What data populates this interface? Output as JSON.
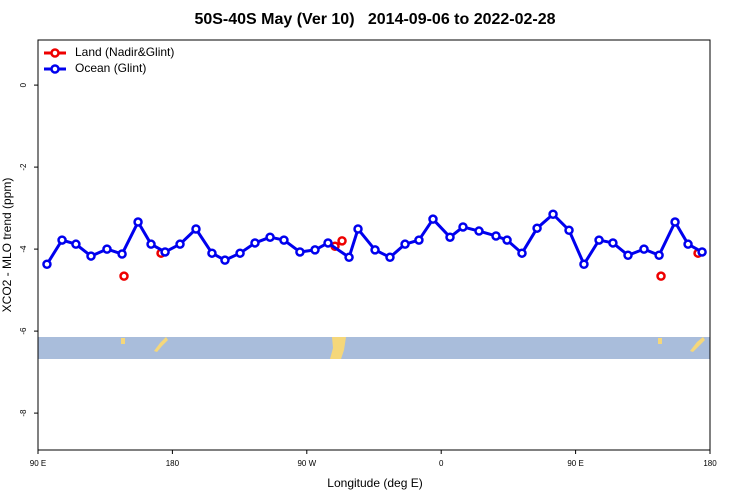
{
  "chart_data": {
    "type": "line",
    "title": "50S-40S May (Ver 10)   2014-09-06 to 2022-02-28",
    "x_label": "Longitude (deg E)",
    "y_label": "XCO2 - MLO trend (ppm)",
    "xlim": [
      90,
      540
    ],
    "xticks": [
      {
        "value": 90,
        "label": "90 E"
      },
      {
        "value": 180,
        "label": "180"
      },
      {
        "value": 270,
        "label": "90 W"
      },
      {
        "value": 360,
        "label": "0"
      },
      {
        "value": 450,
        "label": "90 E"
      },
      {
        "value": 540,
        "label": "180"
      }
    ],
    "ylim": [
      -8.9,
      1.1
    ],
    "yticks": [
      -8,
      -6,
      -4,
      -2,
      0
    ],
    "legend": "top-left",
    "series": [
      {
        "name": "Land (Nadir&Glint)",
        "color": "#ee0000",
        "line": false,
        "x": [
          147.6,
          172.4,
          288.9,
          293.6,
          507.2,
          532.0
        ],
        "values": [
          -4.66,
          -4.1,
          -3.93,
          -3.8,
          -4.66,
          -4.1
        ]
      },
      {
        "name": "Ocean (Glint)",
        "color": "#0000ee",
        "line": true,
        "x": [
          96.0,
          106.1,
          115.4,
          125.5,
          136.2,
          146.3,
          157.0,
          165.7,
          175.1,
          185.1,
          195.8,
          206.5,
          215.2,
          225.3,
          235.3,
          245.4,
          254.7,
          265.4,
          275.5,
          284.2,
          298.3,
          304.3,
          315.7,
          325.7,
          335.8,
          345.1,
          354.5,
          365.9,
          374.6,
          385.3,
          396.7,
          404.1,
          414.1,
          424.2,
          434.9,
          445.6,
          455.6,
          465.7,
          475.0,
          485.1,
          495.8,
          505.9,
          516.6,
          525.3,
          534.7
        ],
        "values": [
          -4.37,
          -3.78,
          -3.88,
          -4.17,
          -4.0,
          -4.12,
          -3.34,
          -3.88,
          -4.07,
          -3.88,
          -3.51,
          -4.1,
          -4.27,
          -4.1,
          -3.85,
          -3.71,
          -3.78,
          -4.07,
          -4.02,
          -3.85,
          -4.2,
          -3.51,
          -4.02,
          -4.2,
          -3.88,
          -3.78,
          -3.27,
          -3.71,
          -3.46,
          -3.56,
          -3.68,
          -3.78,
          -4.1,
          -3.49,
          -3.15,
          -3.54,
          -4.37,
          -3.78,
          -3.85,
          -4.15,
          -4.0,
          -4.15,
          -3.34,
          -3.88,
          -4.07
        ]
      }
    ]
  }
}
